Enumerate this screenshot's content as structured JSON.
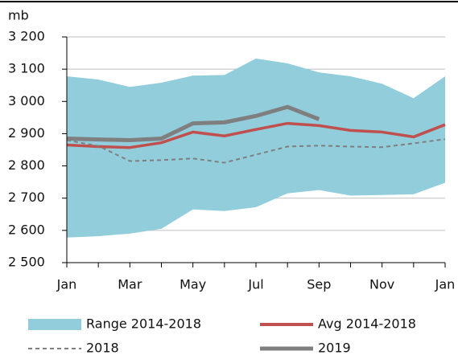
{
  "chart_data": {
    "type": "line",
    "y_label": "mb",
    "categories": [
      "Jan",
      null,
      "Mar",
      null,
      "May",
      null,
      "Jul",
      null,
      "Sep",
      null,
      "Nov",
      null,
      "Jan"
    ],
    "ylim": [
      2500,
      3200
    ],
    "yticks": [
      {
        "value": 2500,
        "label": "2 500"
      },
      {
        "value": 2600,
        "label": "2 600"
      },
      {
        "value": 2700,
        "label": "2 700"
      },
      {
        "value": 2800,
        "label": "2 800"
      },
      {
        "value": 2900,
        "label": "2 900"
      },
      {
        "value": 3000,
        "label": "3 000"
      },
      {
        "value": 3100,
        "label": "3 100"
      },
      {
        "value": 3200,
        "label": "3 200"
      }
    ],
    "grid": true,
    "series": [
      {
        "name": "Range 2014-2018",
        "color": "#92cddc",
        "kind": "range",
        "high": [
          3078,
          3068,
          3045,
          3058,
          3080,
          3082,
          3133,
          3118,
          3090,
          3078,
          3055,
          3010,
          3078
        ],
        "low": [
          2578,
          2582,
          2590,
          2605,
          2665,
          2660,
          2672,
          2715,
          2725,
          2708,
          2710,
          2712,
          2748
        ]
      },
      {
        "name": "Avg 2014-2018",
        "color": "#c0504d",
        "kind": "solid",
        "values": [
          2865,
          2860,
          2857,
          2872,
          2905,
          2893,
          2913,
          2932,
          2925,
          2910,
          2905,
          2890,
          2928
        ]
      },
      {
        "name": "2018",
        "color": "#7f7f7f",
        "kind": "dashed",
        "values": [
          2880,
          2862,
          2815,
          2818,
          2823,
          2810,
          2835,
          2860,
          2863,
          2860,
          2858,
          2870,
          2883
        ]
      },
      {
        "name": "2019",
        "color": "#7f7f7f",
        "kind": "thick",
        "values": [
          2885,
          2882,
          2880,
          2885,
          2932,
          2935,
          2955,
          2983,
          2945,
          null,
          null,
          null,
          null
        ]
      }
    ]
  }
}
